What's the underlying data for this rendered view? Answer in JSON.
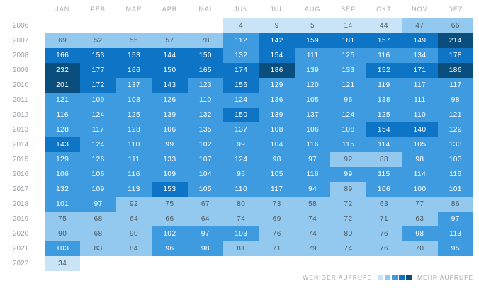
{
  "months": [
    "JAN",
    "FEB",
    "MÄR",
    "APR",
    "MAI",
    "JUN",
    "JUL",
    "AUG",
    "SEP",
    "OKT",
    "NOV",
    "DEZ"
  ],
  "years": [
    "2006",
    "2007",
    "2008",
    "2009",
    "2010",
    "2011",
    "2012",
    "2013",
    "2014",
    "2015",
    "2016",
    "2017",
    "2018",
    "2019",
    "2020",
    "2021",
    "2022"
  ],
  "legend": {
    "less_label": "WENIGER AUFRUFE",
    "more_label": "MEHR AUFRUFE"
  },
  "colors": {
    "scale": [
      "#c9e4f7",
      "#93c9ef",
      "#3f9be0",
      "#0e74c6",
      "#0a4e7d"
    ],
    "empty": "#ffffff",
    "text_dark": "#54585d",
    "text_light": "#ffffff",
    "label_gray": "#9aa0a6"
  },
  "chart_data": {
    "type": "heatmap",
    "title": "",
    "xlabel": "",
    "ylabel": "",
    "x": [
      "JAN",
      "FEB",
      "MÄR",
      "APR",
      "MAI",
      "JUN",
      "JUL",
      "AUG",
      "SEP",
      "OKT",
      "NOV",
      "DEZ"
    ],
    "y": [
      "2006",
      "2007",
      "2008",
      "2009",
      "2010",
      "2011",
      "2012",
      "2013",
      "2014",
      "2015",
      "2016",
      "2017",
      "2018",
      "2019",
      "2020",
      "2021",
      "2022"
    ],
    "values": [
      [
        null,
        null,
        null,
        null,
        null,
        4,
        9,
        5,
        14,
        44,
        47,
        66
      ],
      [
        69,
        52,
        55,
        57,
        78,
        112,
        142,
        159,
        181,
        157,
        149,
        214
      ],
      [
        166,
        153,
        153,
        144,
        150,
        132,
        154,
        111,
        125,
        116,
        134,
        178
      ],
      [
        232,
        177,
        166,
        150,
        165,
        174,
        186,
        139,
        133,
        152,
        171,
        186
      ],
      [
        201,
        172,
        137,
        143,
        123,
        156,
        129,
        120,
        121,
        119,
        117,
        117
      ],
      [
        121,
        109,
        108,
        126,
        110,
        124,
        136,
        105,
        96,
        138,
        111,
        98
      ],
      [
        116,
        124,
        125,
        139,
        132,
        150,
        139,
        137,
        124,
        125,
        110,
        121
      ],
      [
        128,
        117,
        128,
        106,
        135,
        137,
        108,
        106,
        108,
        154,
        140,
        129
      ],
      [
        143,
        124,
        110,
        99,
        102,
        99,
        104,
        116,
        115,
        114,
        105,
        133
      ],
      [
        129,
        126,
        111,
        133,
        107,
        124,
        98,
        97,
        92,
        88,
        98,
        103
      ],
      [
        106,
        106,
        116,
        109,
        104,
        95,
        105,
        116,
        99,
        115,
        114,
        116
      ],
      [
        132,
        109,
        113,
        153,
        105,
        110,
        117,
        94,
        89,
        106,
        100,
        101
      ],
      [
        101,
        97,
        92,
        75,
        67,
        80,
        73,
        58,
        72,
        63,
        77,
        86
      ],
      [
        75,
        68,
        64,
        66,
        64,
        74,
        69,
        74,
        72,
        71,
        63,
        97
      ],
      [
        90,
        68,
        90,
        102,
        97,
        103,
        76,
        74,
        80,
        76,
        98,
        113
      ],
      [
        103,
        83,
        84,
        96,
        98,
        81,
        71,
        79,
        74,
        76,
        70,
        95
      ],
      [
        34,
        null,
        null,
        null,
        null,
        null,
        null,
        null,
        null,
        null,
        null,
        null
      ]
    ],
    "value_range": [
      0,
      232
    ],
    "bucket_max": [
      46,
      92,
      139,
      185,
      232
    ],
    "legend_position": "bottom-right",
    "grid": false
  }
}
